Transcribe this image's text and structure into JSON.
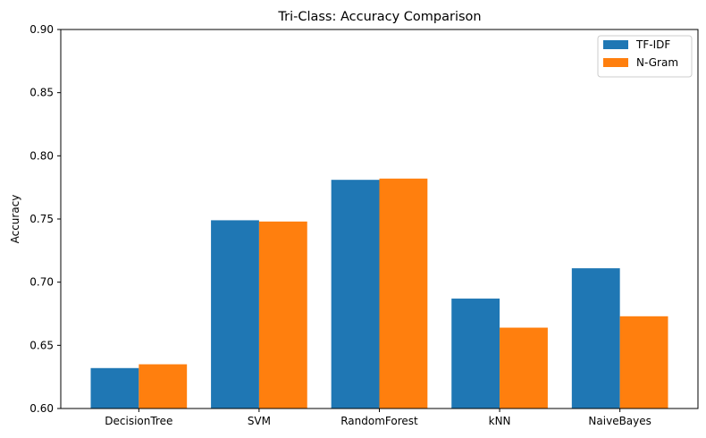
{
  "chart_data": {
    "type": "bar",
    "title": "Tri-Class: Accuracy Comparison",
    "xlabel": "",
    "ylabel": "Accuracy",
    "categories": [
      "DecisionTree",
      "SVM",
      "RandomForest",
      "kNN",
      "NaiveBayes"
    ],
    "series": [
      {
        "name": "TF-IDF",
        "color": "#1f77b4",
        "values": [
          0.632,
          0.749,
          0.781,
          0.687,
          0.711
        ]
      },
      {
        "name": "N-Gram",
        "color": "#ff7f0e",
        "values": [
          0.635,
          0.748,
          0.782,
          0.664,
          0.673
        ]
      }
    ],
    "ylim": [
      0.6,
      0.9
    ],
    "yticks": [
      "0.60",
      "0.65",
      "0.70",
      "0.75",
      "0.80",
      "0.85",
      "0.90"
    ],
    "grid": false,
    "legend_position": "top-right"
  }
}
